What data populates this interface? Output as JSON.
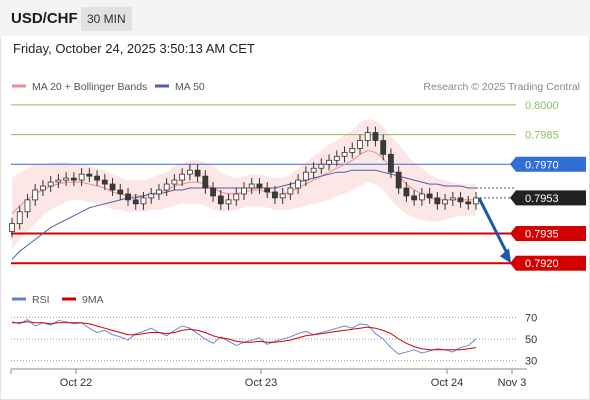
{
  "header": {
    "symbol": "USD/CHF",
    "timeframe": "30 MIN",
    "datetime": "Friday, October 24, 2025 3:50:13 AM CET"
  },
  "legend": {
    "ma20": "MA 20 + Bollinger Bands",
    "ma50": "MA 50",
    "credit": "Research © 2025 Trading Central"
  },
  "colors": {
    "up_candle": "#3a3a3a",
    "ma20": "#f08c8c",
    "bollinger_fill": "#fde2e2",
    "ma50": "#4a5fa8",
    "resistance": "#8bbf5a",
    "pivot": "#2f6fd6",
    "support": "#d40000",
    "arrow": "#1f57a4",
    "rsi": "#5b7fd6",
    "rsi_ma": "#d40000"
  },
  "chart_data": [
    {
      "type": "candlestick",
      "title": "",
      "x_ticks": [
        "Oct 22",
        "Oct 23",
        "Oct 24",
        "Nov 3"
      ],
      "ylim": [
        0.791,
        0.8005
      ],
      "levels": [
        {
          "label": "0.8000",
          "value": 0.8,
          "kind": "resistance"
        },
        {
          "label": "0.7985",
          "value": 0.7985,
          "kind": "resistance"
        },
        {
          "label": "0.7970",
          "value": 0.797,
          "kind": "pivot"
        },
        {
          "label": "0.7953",
          "value": 0.7953,
          "kind": "last"
        },
        {
          "label": "0.7935",
          "value": 0.7935,
          "kind": "support"
        },
        {
          "label": "0.7920",
          "value": 0.792,
          "kind": "support"
        }
      ],
      "close_series": [
        0.794,
        0.7946,
        0.7952,
        0.7957,
        0.7959,
        0.7961,
        0.7962,
        0.7963,
        0.7962,
        0.7965,
        0.7964,
        0.7962,
        0.796,
        0.7957,
        0.7955,
        0.7952,
        0.795,
        0.7953,
        0.7955,
        0.7957,
        0.796,
        0.7962,
        0.7965,
        0.7967,
        0.7964,
        0.7958,
        0.7954,
        0.795,
        0.7952,
        0.7955,
        0.7958,
        0.796,
        0.7958,
        0.7956,
        0.7953,
        0.7955,
        0.7958,
        0.7962,
        0.7966,
        0.7968,
        0.797,
        0.7972,
        0.7974,
        0.7976,
        0.7978,
        0.7982,
        0.7986,
        0.7982,
        0.7975,
        0.7966,
        0.7958,
        0.7954,
        0.7952,
        0.7955,
        0.7953,
        0.795,
        0.7952,
        0.7953,
        0.7951,
        0.795,
        0.7953
      ],
      "ma20_series": [
        0.7945,
        0.7949,
        0.7952,
        0.7955,
        0.7957,
        0.7959,
        0.796,
        0.7961,
        0.7961,
        0.7961,
        0.796,
        0.7959,
        0.7958,
        0.7956,
        0.7955,
        0.7954,
        0.7954,
        0.7954,
        0.7955,
        0.7956,
        0.7957,
        0.7959,
        0.796,
        0.7961,
        0.7961,
        0.796,
        0.7958,
        0.7956,
        0.7955,
        0.7955,
        0.7956,
        0.7957,
        0.7957,
        0.7956,
        0.7955,
        0.7955,
        0.7956,
        0.7958,
        0.796,
        0.7962,
        0.7964,
        0.7966,
        0.7968,
        0.797,
        0.7972,
        0.7975,
        0.7977,
        0.7976,
        0.7973,
        0.7968,
        0.7964,
        0.796,
        0.7957,
        0.7955,
        0.7953,
        0.7952,
        0.7952,
        0.7952,
        0.7952,
        0.7952,
        0.7952
      ],
      "band_width": [
        0.0018,
        0.0017,
        0.0016,
        0.0015,
        0.0013,
        0.0012,
        0.0011,
        0.001,
        0.0009,
        0.0009,
        0.0009,
        0.0009,
        0.0009,
        0.0009,
        0.0008,
        0.0008,
        0.0008,
        0.0008,
        0.0008,
        0.0009,
        0.0009,
        0.001,
        0.001,
        0.0011,
        0.0011,
        0.0011,
        0.0011,
        0.001,
        0.0009,
        0.0008,
        0.0008,
        0.0008,
        0.0008,
        0.0008,
        0.0008,
        0.0008,
        0.0009,
        0.001,
        0.0011,
        0.0012,
        0.0013,
        0.0014,
        0.0014,
        0.0015,
        0.0015,
        0.0016,
        0.0016,
        0.0016,
        0.0016,
        0.0016,
        0.0016,
        0.0015,
        0.0014,
        0.0013,
        0.0012,
        0.0011,
        0.001,
        0.0009,
        0.0008,
        0.0008,
        0.0008
      ],
      "ma50_series": [
        0.7922,
        0.7926,
        0.7929,
        0.7932,
        0.7935,
        0.7938,
        0.794,
        0.7942,
        0.7944,
        0.7946,
        0.7948,
        0.7949,
        0.795,
        0.7951,
        0.7952,
        0.7953,
        0.7953,
        0.7954,
        0.7955,
        0.7955,
        0.7956,
        0.7957,
        0.7957,
        0.7958,
        0.7958,
        0.7958,
        0.7958,
        0.7958,
        0.7958,
        0.7958,
        0.7958,
        0.7958,
        0.7958,
        0.7958,
        0.7958,
        0.7959,
        0.796,
        0.7961,
        0.7962,
        0.7963,
        0.7964,
        0.7965,
        0.7966,
        0.7966,
        0.7967,
        0.7967,
        0.7967,
        0.7967,
        0.7966,
        0.7965,
        0.7964,
        0.7963,
        0.7962,
        0.7961,
        0.796,
        0.796,
        0.7959,
        0.7959,
        0.7959,
        0.7958,
        0.7958
      ],
      "forecast": {
        "from": 0.7953,
        "to": 0.792
      }
    },
    {
      "type": "line",
      "title": "",
      "legend": [
        "RSI",
        "9MA"
      ],
      "ylim": [
        25,
        75
      ],
      "y_ticks": [
        "70",
        "50",
        "30"
      ],
      "rsi_series": [
        66,
        64,
        68,
        62,
        65,
        63,
        67,
        66,
        64,
        65,
        60,
        56,
        58,
        54,
        52,
        49,
        55,
        57,
        60,
        56,
        53,
        58,
        62,
        60,
        55,
        50,
        46,
        52,
        48,
        44,
        47,
        49,
        51,
        45,
        48,
        50,
        52,
        55,
        57,
        54,
        56,
        58,
        60,
        62,
        60,
        64,
        63,
        55,
        50,
        42,
        36,
        38,
        40,
        37,
        39,
        41,
        40,
        38,
        42,
        44,
        50
      ],
      "ma_series": [
        65,
        65,
        66,
        65,
        65,
        64,
        65,
        65,
        65,
        65,
        64,
        62,
        60,
        58,
        56,
        54,
        54,
        55,
        56,
        56,
        55,
        56,
        58,
        59,
        58,
        56,
        53,
        51,
        50,
        48,
        47,
        47,
        48,
        47,
        47,
        48,
        49,
        51,
        53,
        54,
        55,
        56,
        57,
        58,
        59,
        60,
        61,
        60,
        58,
        55,
        50,
        46,
        43,
        41,
        40,
        40,
        40,
        40,
        40,
        41,
        42
      ]
    }
  ]
}
